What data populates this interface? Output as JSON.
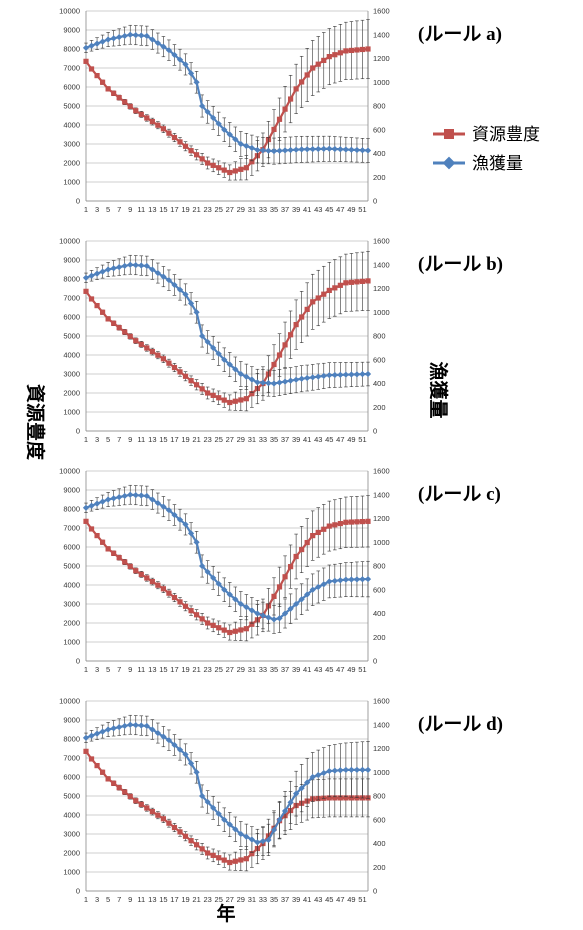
{
  "colors": {
    "abundance": "#C0504D",
    "catch": "#4F81BD",
    "grid": "#bfbfbf",
    "errorbar": "#333333"
  },
  "legend": {
    "abundance_label": "資源豊度",
    "catch_label": "漁獲量"
  },
  "axis_titles": {
    "y_left": "資源豊度",
    "y_right": "漁獲量",
    "x": "年"
  },
  "chart_data": [
    {
      "type": "line",
      "panel_label": "(ルール a)",
      "x": {
        "start": 1,
        "end": 52,
        "tick_labels": [
          "1",
          "3",
          "5",
          "7",
          "9",
          "11",
          "13",
          "15",
          "17",
          "19",
          "21",
          "23",
          "25",
          "27",
          "29",
          "31",
          "33",
          "35",
          "37",
          "39",
          "41",
          "43",
          "45",
          "47",
          "49",
          "51"
        ]
      },
      "y_left": {
        "ylim": [
          0,
          10000
        ],
        "ticks": [
          "0",
          "1000",
          "2000",
          "3000",
          "4000",
          "5000",
          "6000",
          "7000",
          "8000",
          "9000",
          "10000"
        ]
      },
      "y_right": {
        "ylim": [
          0,
          1600
        ],
        "ticks": [
          "0",
          "200",
          "400",
          "600",
          "800",
          "1000",
          "1200",
          "1400",
          "1600"
        ]
      },
      "grid": true,
      "series": [
        {
          "name": "資源豊度",
          "axis": "left",
          "marker": "square",
          "keypoints": [
            [
              1,
              7350
            ],
            [
              2,
              6950
            ],
            [
              5,
              5900
            ],
            [
              10,
              4750
            ],
            [
              15,
              3800
            ],
            [
              20,
              2650
            ],
            [
              23,
              2000
            ],
            [
              27,
              1500
            ],
            [
              30,
              1750
            ],
            [
              33,
              2700
            ],
            [
              36,
              4300
            ],
            [
              39,
              5900
            ],
            [
              42,
              7000
            ],
            [
              45,
              7600
            ],
            [
              48,
              7900
            ],
            [
              52,
              8000
            ]
          ],
          "error_keypoints": [
            [
              1,
              100
            ],
            [
              10,
              150
            ],
            [
              20,
              250
            ],
            [
              27,
              400
            ],
            [
              32,
              800
            ],
            [
              37,
              1200
            ],
            [
              42,
              1450
            ],
            [
              52,
              1550
            ]
          ]
        },
        {
          "name": "漁獲量",
          "axis": "right",
          "marker": "diamond",
          "keypoints": [
            [
              1,
              1290
            ],
            [
              5,
              1360
            ],
            [
              9,
              1400
            ],
            [
              12,
              1390
            ],
            [
              16,
              1270
            ],
            [
              19,
              1150
            ],
            [
              21,
              1000
            ],
            [
              22,
              800
            ],
            [
              24,
              700
            ],
            [
              26,
              600
            ],
            [
              29,
              480
            ],
            [
              32,
              430
            ],
            [
              35,
              420
            ],
            [
              40,
              435
            ],
            [
              45,
              440
            ],
            [
              52,
              425
            ]
          ],
          "error_keypoints": [
            [
              1,
              40
            ],
            [
              9,
              80
            ],
            [
              20,
              90
            ],
            [
              26,
              100
            ],
            [
              32,
              110
            ],
            [
              40,
              110
            ],
            [
              52,
              100
            ]
          ]
        }
      ]
    },
    {
      "type": "line",
      "panel_label": "(ルール b)",
      "x": {
        "start": 1,
        "end": 52,
        "tick_labels": [
          "1",
          "3",
          "5",
          "7",
          "9",
          "11",
          "13",
          "15",
          "17",
          "19",
          "21",
          "23",
          "25",
          "27",
          "29",
          "31",
          "33",
          "35",
          "37",
          "39",
          "41",
          "43",
          "45",
          "47",
          "49",
          "51"
        ]
      },
      "y_left": {
        "ylim": [
          0,
          10000
        ],
        "ticks": [
          "0",
          "1000",
          "2000",
          "3000",
          "4000",
          "5000",
          "6000",
          "7000",
          "8000",
          "9000",
          "10000"
        ]
      },
      "y_right": {
        "ylim": [
          0,
          1600
        ],
        "ticks": [
          "0",
          "200",
          "400",
          "600",
          "800",
          "1000",
          "1200",
          "1400",
          "1600"
        ]
      },
      "grid": true,
      "series": [
        {
          "name": "資源豊度",
          "axis": "left",
          "marker": "square",
          "keypoints": [
            [
              1,
              7350
            ],
            [
              2,
              6950
            ],
            [
              5,
              5900
            ],
            [
              10,
              4750
            ],
            [
              15,
              3800
            ],
            [
              20,
              2650
            ],
            [
              23,
              2000
            ],
            [
              27,
              1500
            ],
            [
              30,
              1700
            ],
            [
              33,
              2500
            ],
            [
              36,
              4000
            ],
            [
              39,
              5600
            ],
            [
              42,
              6800
            ],
            [
              45,
              7400
            ],
            [
              48,
              7800
            ],
            [
              52,
              7900
            ]
          ],
          "error_keypoints": [
            [
              1,
              100
            ],
            [
              10,
              150
            ],
            [
              20,
              250
            ],
            [
              27,
              400
            ],
            [
              32,
              800
            ],
            [
              37,
              1200
            ],
            [
              42,
              1450
            ],
            [
              52,
              1550
            ]
          ]
        },
        {
          "name": "漁獲量",
          "axis": "right",
          "marker": "diamond",
          "keypoints": [
            [
              1,
              1290
            ],
            [
              5,
              1360
            ],
            [
              9,
              1400
            ],
            [
              12,
              1390
            ],
            [
              16,
              1270
            ],
            [
              19,
              1150
            ],
            [
              21,
              1000
            ],
            [
              22,
              800
            ],
            [
              24,
              700
            ],
            [
              26,
              600
            ],
            [
              29,
              480
            ],
            [
              32,
              410
            ],
            [
              35,
              400
            ],
            [
              40,
              440
            ],
            [
              45,
              470
            ],
            [
              52,
              480
            ]
          ],
          "error_keypoints": [
            [
              1,
              40
            ],
            [
              9,
              80
            ],
            [
              20,
              90
            ],
            [
              26,
              100
            ],
            [
              32,
              110
            ],
            [
              40,
              110
            ],
            [
              52,
              100
            ]
          ]
        }
      ]
    },
    {
      "type": "line",
      "panel_label": "(ルール c)",
      "x": {
        "start": 1,
        "end": 52,
        "tick_labels": [
          "1",
          "3",
          "5",
          "7",
          "9",
          "11",
          "13",
          "15",
          "17",
          "19",
          "21",
          "23",
          "25",
          "27",
          "29",
          "31",
          "33",
          "35",
          "37",
          "39",
          "41",
          "43",
          "45",
          "47",
          "49",
          "51"
        ]
      },
      "y_left": {
        "ylim": [
          0,
          10000
        ],
        "ticks": [
          "0",
          "1000",
          "2000",
          "3000",
          "4000",
          "5000",
          "6000",
          "7000",
          "8000",
          "9000",
          "10000"
        ]
      },
      "y_right": {
        "ylim": [
          0,
          1600
        ],
        "ticks": [
          "0",
          "200",
          "400",
          "600",
          "800",
          "1000",
          "1200",
          "1400",
          "1600"
        ]
      },
      "grid": true,
      "series": [
        {
          "name": "資源豊度",
          "axis": "left",
          "marker": "square",
          "keypoints": [
            [
              1,
              7350
            ],
            [
              2,
              6950
            ],
            [
              5,
              5900
            ],
            [
              10,
              4750
            ],
            [
              15,
              3800
            ],
            [
              20,
              2650
            ],
            [
              23,
              2000
            ],
            [
              27,
              1500
            ],
            [
              30,
              1700
            ],
            [
              33,
              2400
            ],
            [
              36,
              3900
            ],
            [
              39,
              5500
            ],
            [
              42,
              6600
            ],
            [
              45,
              7100
            ],
            [
              48,
              7300
            ],
            [
              52,
              7350
            ]
          ],
          "error_keypoints": [
            [
              1,
              100
            ],
            [
              10,
              150
            ],
            [
              20,
              250
            ],
            [
              27,
              400
            ],
            [
              32,
              800
            ],
            [
              37,
              1100
            ],
            [
              42,
              1300
            ],
            [
              52,
              1350
            ]
          ]
        },
        {
          "name": "漁獲量",
          "axis": "right",
          "marker": "diamond",
          "keypoints": [
            [
              1,
              1290
            ],
            [
              5,
              1360
            ],
            [
              9,
              1400
            ],
            [
              12,
              1390
            ],
            [
              16,
              1270
            ],
            [
              19,
              1150
            ],
            [
              21,
              1000
            ],
            [
              22,
              800
            ],
            [
              24,
              700
            ],
            [
              26,
              600
            ],
            [
              29,
              480
            ],
            [
              32,
              400
            ],
            [
              35,
              350
            ],
            [
              36,
              360
            ],
            [
              39,
              480
            ],
            [
              42,
              600
            ],
            [
              45,
              670
            ],
            [
              48,
              685
            ],
            [
              52,
              690
            ]
          ],
          "error_keypoints": [
            [
              1,
              40
            ],
            [
              9,
              80
            ],
            [
              20,
              90
            ],
            [
              26,
              100
            ],
            [
              32,
              110
            ],
            [
              40,
              130
            ],
            [
              52,
              150
            ]
          ]
        }
      ]
    },
    {
      "type": "line",
      "panel_label": "(ルール d)",
      "x": {
        "start": 1,
        "end": 52,
        "tick_labels": [
          "1",
          "3",
          "5",
          "7",
          "9",
          "11",
          "13",
          "15",
          "17",
          "19",
          "21",
          "23",
          "25",
          "27",
          "29",
          "31",
          "33",
          "35",
          "37",
          "39",
          "41",
          "43",
          "45",
          "47",
          "49",
          "51"
        ]
      },
      "y_left": {
        "ylim": [
          0,
          10000
        ],
        "ticks": [
          "0",
          "1000",
          "2000",
          "3000",
          "4000",
          "5000",
          "6000",
          "7000",
          "8000",
          "9000",
          "10000"
        ]
      },
      "y_right": {
        "ylim": [
          0,
          1600
        ],
        "ticks": [
          "0",
          "200",
          "400",
          "600",
          "800",
          "1000",
          "1200",
          "1400",
          "1600"
        ]
      },
      "grid": true,
      "series": [
        {
          "name": "資源豊度",
          "axis": "left",
          "marker": "square",
          "keypoints": [
            [
              1,
              7350
            ],
            [
              2,
              6950
            ],
            [
              5,
              5900
            ],
            [
              10,
              4750
            ],
            [
              15,
              3800
            ],
            [
              20,
              2650
            ],
            [
              23,
              2000
            ],
            [
              27,
              1500
            ],
            [
              30,
              1700
            ],
            [
              33,
              2500
            ],
            [
              36,
              3700
            ],
            [
              39,
              4500
            ],
            [
              42,
              4850
            ],
            [
              45,
              4900
            ],
            [
              52,
              4900
            ]
          ],
          "error_keypoints": [
            [
              1,
              100
            ],
            [
              10,
              150
            ],
            [
              20,
              250
            ],
            [
              27,
              400
            ],
            [
              32,
              800
            ],
            [
              37,
              1000
            ],
            [
              42,
              1000
            ],
            [
              52,
              1000
            ]
          ]
        },
        {
          "name": "漁獲量",
          "axis": "right",
          "marker": "diamond",
          "keypoints": [
            [
              1,
              1290
            ],
            [
              5,
              1360
            ],
            [
              9,
              1400
            ],
            [
              12,
              1390
            ],
            [
              16,
              1270
            ],
            [
              19,
              1150
            ],
            [
              21,
              1000
            ],
            [
              22,
              800
            ],
            [
              24,
              700
            ],
            [
              26,
              600
            ],
            [
              29,
              480
            ],
            [
              32,
              410
            ],
            [
              34,
              430
            ],
            [
              36,
              600
            ],
            [
              39,
              820
            ],
            [
              42,
              960
            ],
            [
              45,
              1010
            ],
            [
              48,
              1020
            ],
            [
              52,
              1020
            ]
          ],
          "error_keypoints": [
            [
              1,
              40
            ],
            [
              9,
              80
            ],
            [
              20,
              90
            ],
            [
              26,
              100
            ],
            [
              32,
              110
            ],
            [
              40,
              200
            ],
            [
              52,
              240
            ]
          ]
        }
      ]
    }
  ]
}
